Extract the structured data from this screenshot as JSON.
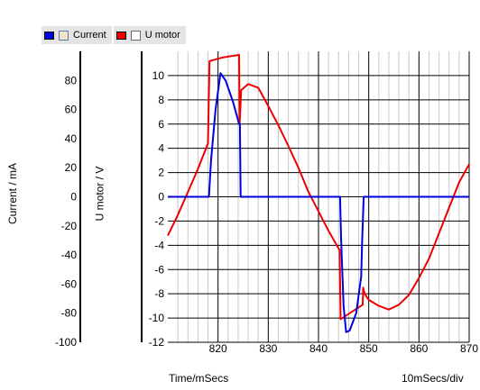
{
  "legend": {
    "items": [
      {
        "label": "Current",
        "color": "#0000dd"
      },
      {
        "label": "U motor",
        "color": "#ee0000"
      }
    ]
  },
  "footer": {
    "xlabel": "Time/mSecs",
    "scale": "10mSecs/div"
  },
  "chart_data": {
    "type": "line",
    "xlabel": "Time/mSecs",
    "xlim": [
      810,
      870
    ],
    "x_ticks": [
      820,
      830,
      840,
      850,
      860,
      870
    ],
    "grid": true,
    "y_axes": [
      {
        "label": "Current / mA",
        "lim": [
          -100,
          100
        ],
        "ticks": [
          -100,
          -80,
          -60,
          -40,
          -20,
          0,
          20,
          40,
          60,
          80
        ]
      },
      {
        "label": "U motor / V",
        "lim": [
          -12,
          12
        ],
        "ticks": [
          -12,
          -10,
          -8,
          -6,
          -4,
          -2,
          0,
          2,
          4,
          6,
          8,
          10
        ]
      }
    ],
    "series": [
      {
        "name": "Current",
        "axis": "Current / mA",
        "color": "#0000dd",
        "x": [
          810,
          818.2,
          818.6,
          819.5,
          820.5,
          821.5,
          823,
          824.2,
          824.35,
          824.5,
          844.3,
          844.5,
          845,
          845.5,
          846.2,
          847.5,
          848.5,
          848.7,
          849,
          870
        ],
        "y": [
          0,
          0,
          25,
          60,
          85,
          80,
          65,
          50,
          50,
          0,
          0,
          -28,
          -75,
          -93,
          -92,
          -80,
          -55,
          -30,
          0,
          0
        ]
      },
      {
        "name": "U motor",
        "axis": "U motor / V",
        "color": "#ee0000",
        "x": [
          810,
          812,
          814,
          816,
          818,
          818.3,
          821,
          824.2,
          824.3,
          824.6,
          826,
          828,
          830,
          832,
          834,
          836,
          838,
          840,
          842,
          844.2,
          844.4,
          848.8,
          848.9,
          849.2,
          850,
          852,
          854,
          856,
          858,
          860,
          862,
          864,
          866,
          868,
          870
        ],
        "y": [
          -3.2,
          -1.5,
          0.4,
          2.3,
          4.4,
          11.2,
          11.5,
          11.7,
          6,
          8.8,
          9.3,
          9.0,
          7.5,
          5.9,
          4.2,
          2.4,
          0.4,
          -1.2,
          -2.8,
          -4.4,
          -10.1,
          -8.9,
          -7.5,
          -8.0,
          -8.5,
          -9.0,
          -9.3,
          -8.9,
          -8.1,
          -6.7,
          -5.1,
          -3.0,
          -0.9,
          1.2,
          2.7
        ]
      }
    ]
  }
}
